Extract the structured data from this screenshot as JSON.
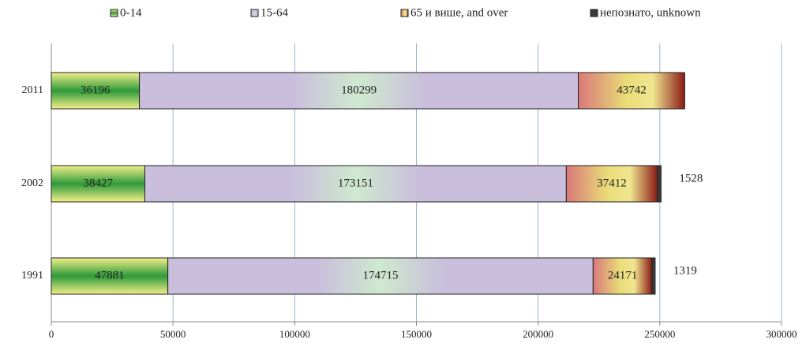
{
  "chart_data": {
    "type": "stacked-bar-horizontal",
    "categories": [
      "2011",
      "2002",
      "1991"
    ],
    "series": [
      {
        "name": "0-14",
        "color": "#2f9a3a",
        "values": [
          36196,
          38427,
          47881
        ]
      },
      {
        "name": "15-64",
        "color": "#c9bedc",
        "values": [
          180299,
          173151,
          174715
        ]
      },
      {
        "name": "65 и више, and over",
        "color": "#e9dc78",
        "values": [
          43742,
          37412,
          24171
        ]
      },
      {
        "name": "непознато, unknown",
        "color": "#3a3a3a",
        "values": [
          null,
          1528,
          1319
        ]
      }
    ],
    "xlim": [
      0,
      300000
    ],
    "xticks": [
      0,
      50000,
      100000,
      150000,
      200000,
      250000,
      300000
    ],
    "grid": true
  }
}
